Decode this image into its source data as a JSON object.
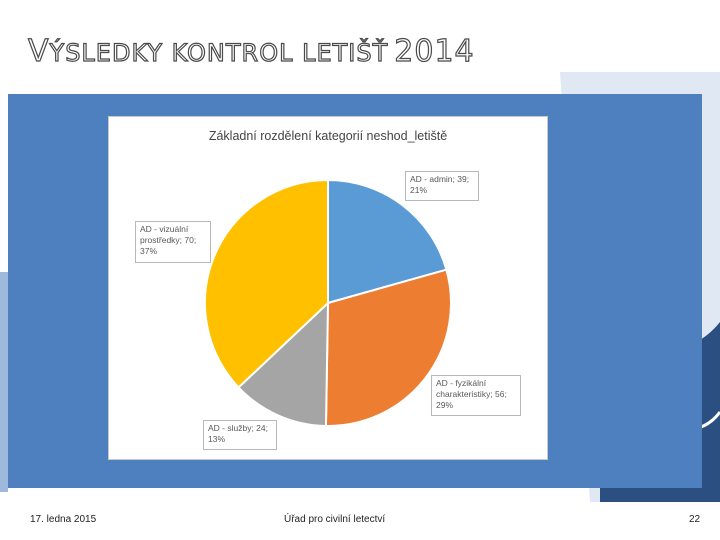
{
  "slide": {
    "title_first_letter": "V",
    "title_rest": "ÝSLEDKY KONTROL LETIŠŤ",
    "title_year": "2014",
    "footer_date": "17. ledna 2015",
    "footer_org": "Úřad pro civilní letectví",
    "page_number": "22"
  },
  "colors": {
    "panel": "#4e7fbe",
    "admin": "#5b9bd5",
    "fyzicke": "#ed7d31",
    "sluzby": "#a5a5a5",
    "vizualni": "#ffc000"
  },
  "chart_data": {
    "type": "pie",
    "title": "Základní rozdělení kategorií neshod_letiště",
    "categories": [
      "AD - admin",
      "AD - fyzikální charakteristiky",
      "AD - služby",
      "AD - vizuální prostředky"
    ],
    "values": [
      39,
      56,
      24,
      70
    ],
    "percent_labels": [
      "21%",
      "29%",
      "13%",
      "37%"
    ],
    "labels": [
      "AD - admin; 39;\n21%",
      "AD - fyzikální\ncharakteristiky; 56;\n29%",
      "AD - služby; 24;\n13%",
      "AD - vizuální\nprostředky; 70;\n37%"
    ],
    "legend": "none"
  }
}
